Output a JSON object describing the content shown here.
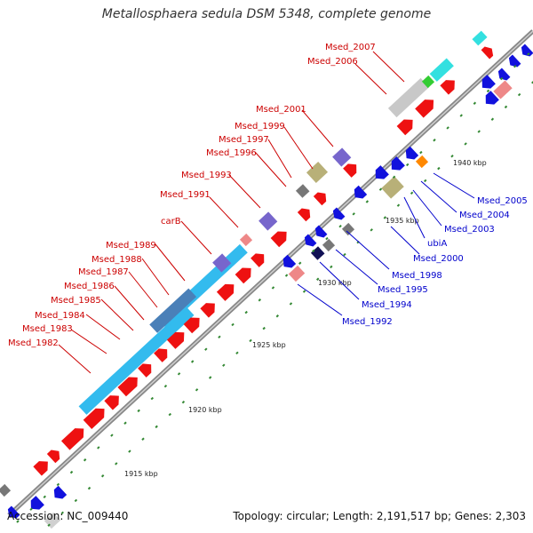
{
  "title": "Metallosphaera sedula DSM 5348, complete genome",
  "footer": {
    "accession": "Accession: NC_009440",
    "summary": "Topology: circular; Length: 2,191,517 bp; Genes: 2,303"
  },
  "colors": {
    "cds_red": "#ee1111",
    "cds_blue": "#1111dd",
    "cyan": "#33bbee",
    "steel": "#4a80b8",
    "backbone": "#888888",
    "label_red": "#cc0000",
    "label_blue": "#0000cc",
    "tick": "#338833"
  },
  "scale_labels": [
    "1915 kbp",
    "1920 kbp",
    "1925 kbp",
    "1930 kbp",
    "1935 kbp",
    "1940 kbp"
  ],
  "red_labels": [
    "Msed_2007",
    "Msed_2006",
    "Msed_2001",
    "Msed_1999",
    "Msed_1997",
    "Msed_1996",
    "Msed_1993",
    "Msed_1991",
    "carB",
    "Msed_1989",
    "Msed_1988",
    "Msed_1987",
    "Msed_1986",
    "Msed_1985",
    "Msed_1984",
    "Msed_1983",
    "Msed_1982"
  ],
  "blue_labels": [
    "Msed_2005",
    "Msed_2004",
    "Msed_2003",
    "ubiA",
    "Msed_2000",
    "Msed_1998",
    "Msed_1995",
    "Msed_1994",
    "Msed_1992"
  ]
}
